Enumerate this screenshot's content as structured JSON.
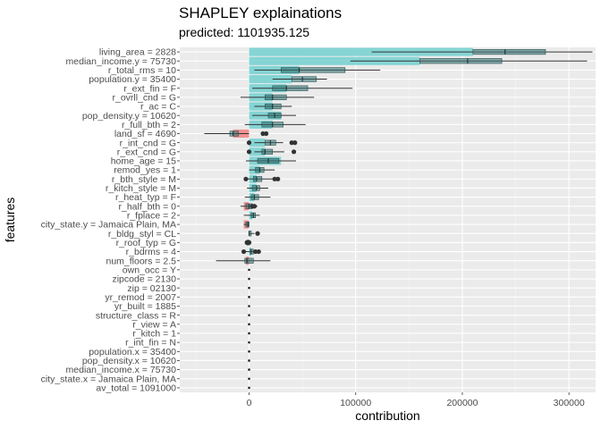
{
  "chart_data": {
    "type": "bar",
    "title": "SHAPLEY explainations",
    "subtitle": "predicted: 1101935.125",
    "xlabel": "contribution",
    "ylabel": "features",
    "xlim": [
      -65000,
      325000
    ],
    "x_ticks": [
      0,
      100000,
      200000,
      300000
    ],
    "x_tick_labels": [
      "0",
      "100000",
      "200000",
      "300000"
    ],
    "grid": true,
    "colors": {
      "positive": "#7fd3d3",
      "negative": "#f08c8c",
      "panel": "#ebebeb",
      "box": "#2e6e6e"
    },
    "features": [
      {
        "label": "living_area = 2828",
        "value": 210000,
        "box": [
          150000,
          210000,
          240000,
          278000,
          310000
        ],
        "whisker": [
          115000,
          322000
        ],
        "outliers": []
      },
      {
        "label": "median_income.y = 75730",
        "value": 160000,
        "box": [
          120000,
          160000,
          205000,
          237000,
          270000
        ],
        "whisker": [
          95000,
          317000
        ],
        "outliers": []
      },
      {
        "label": "r_total_rms = 10",
        "value": 47000,
        "box": [
          15000,
          30000,
          47000,
          90000,
          100000
        ],
        "whisker": [
          5000,
          123000
        ],
        "outliers": []
      },
      {
        "label": "population.y = 35400",
        "value": 40000,
        "box": [
          25000,
          40000,
          50000,
          63000,
          70000
        ],
        "whisker": [
          22000,
          73000
        ],
        "outliers": []
      },
      {
        "label": "r_ext_fin = F",
        "value": 35000,
        "box": [
          10000,
          22000,
          35000,
          55000,
          65000
        ],
        "whisker": [
          3000,
          97000
        ],
        "outliers": []
      },
      {
        "label": "r_ovrll_cnd = G",
        "value": 22000,
        "box": [
          5000,
          15000,
          22000,
          35000,
          45000
        ],
        "whisker": [
          -8000,
          61000
        ],
        "outliers": []
      },
      {
        "label": "r_ac = C",
        "value": 22000,
        "box": [
          10000,
          15000,
          22000,
          30000,
          36000
        ],
        "whisker": [
          5000,
          40000
        ],
        "outliers": []
      },
      {
        "label": "pop_density.y = 10620",
        "value": 30000,
        "box": [
          10000,
          18000,
          24000,
          30000,
          36000
        ],
        "whisker": [
          3000,
          44000
        ],
        "outliers": []
      },
      {
        "label": "r_full_bth = 2",
        "value": 22000,
        "box": [
          5000,
          12000,
          22000,
          32000,
          40000
        ],
        "whisker": [
          -4000,
          53000
        ],
        "outliers": []
      },
      {
        "label": "land_sf = 4690",
        "value": -15000,
        "box": [
          -22000,
          -18000,
          -15000,
          -10000,
          -5000
        ],
        "whisker": [
          -42000,
          0
        ],
        "outliers": [
          13000,
          16000
        ]
      },
      {
        "label": "r_int_cnd = G",
        "value": 15000,
        "box": [
          10000,
          15000,
          20000,
          25000,
          30000
        ],
        "whisker": [
          5000,
          32000
        ],
        "outliers": [
          0,
          40000,
          43000
        ]
      },
      {
        "label": "r_ext_cnd = G",
        "value": 15000,
        "box": [
          8000,
          12000,
          15000,
          22000,
          26000
        ],
        "whisker": [
          5000,
          33000
        ],
        "outliers": [
          0,
          42000
        ]
      },
      {
        "label": "home_age = 15",
        "value": 30000,
        "box": [
          2000,
          8000,
          18000,
          28000,
          34000
        ],
        "whisker": [
          -3000,
          44000
        ],
        "outliers": []
      },
      {
        "label": "remod_yes = 1",
        "value": 10000,
        "box": [
          3000,
          6000,
          10000,
          14000,
          18000
        ],
        "whisker": [
          0,
          24000
        ],
        "outliers": []
      },
      {
        "label": "r_bth_style = M",
        "value": 7000,
        "box": [
          0,
          4000,
          7000,
          12000,
          16000
        ],
        "whisker": [
          -3000,
          22000
        ],
        "outliers": [
          -3000,
          24000,
          27000
        ]
      },
      {
        "label": "r_kitch_style = M",
        "value": 7000,
        "box": [
          0,
          3000,
          7000,
          10000,
          14000
        ],
        "whisker": [
          -2000,
          18000
        ],
        "outliers": []
      },
      {
        "label": "r_heat_typ = F",
        "value": 5000,
        "box": [
          -1000,
          2000,
          5000,
          9000,
          12000
        ],
        "whisker": [
          -4000,
          20000
        ],
        "outliers": []
      },
      {
        "label": "r_half_bth = 0",
        "value": -5000,
        "box": [
          -5000,
          -3000,
          0,
          3000,
          5000
        ],
        "whisker": [
          -8000,
          8000
        ],
        "outliers": [
          3000,
          5000
        ]
      },
      {
        "label": "r_fplace = 2",
        "value": 3000,
        "box": [
          -1000,
          2000,
          4000,
          6000,
          8000
        ],
        "whisker": [
          -5000,
          10000
        ],
        "outliers": []
      },
      {
        "label": "city_state.y = Jamaica Plain, MA",
        "value": -5000,
        "box": [
          -5000,
          -3000,
          -1000,
          0,
          0
        ],
        "whisker": [
          -5000,
          0
        ],
        "outliers": []
      },
      {
        "label": "r_bldg_styl = CL",
        "value": 0,
        "box": [
          0,
          0,
          0,
          2000,
          3000
        ],
        "whisker": [
          0,
          5000
        ],
        "outliers": [
          8000
        ]
      },
      {
        "label": "r_roof_typ = G",
        "value": 0,
        "box": [
          -3000,
          -2000,
          0,
          0,
          0
        ],
        "whisker": [
          -3000,
          0
        ],
        "outliers": [
          -2000,
          0
        ]
      },
      {
        "label": "r_bdrms = 4",
        "value": 2000,
        "box": [
          0,
          1000,
          2000,
          4000,
          6000
        ],
        "whisker": [
          -3000,
          8000
        ],
        "outliers": [
          -5000,
          6000,
          9000
        ]
      },
      {
        "label": "num_floors = 2.5",
        "value": -3000,
        "box": [
          -8000,
          -4000,
          -2000,
          4000,
          10000
        ],
        "whisker": [
          -31000,
          20000
        ],
        "outliers": []
      },
      {
        "label": "own_occ = Y",
        "value": 0,
        "box": [
          0,
          0,
          0,
          0,
          0
        ],
        "whisker": [
          0,
          0
        ],
        "outliers": []
      },
      {
        "label": "zipcode = 2130",
        "value": 0,
        "box": [
          0,
          0,
          0,
          0,
          0
        ],
        "whisker": [
          0,
          0
        ],
        "outliers": []
      },
      {
        "label": "zip = 02130",
        "value": 0,
        "box": [
          0,
          0,
          0,
          0,
          0
        ],
        "whisker": [
          0,
          0
        ],
        "outliers": []
      },
      {
        "label": "yr_remod = 2007",
        "value": 0,
        "box": [
          0,
          0,
          0,
          0,
          0
        ],
        "whisker": [
          0,
          0
        ],
        "outliers": []
      },
      {
        "label": "yr_built = 1885",
        "value": 0,
        "box": [
          0,
          0,
          0,
          0,
          0
        ],
        "whisker": [
          0,
          0
        ],
        "outliers": []
      },
      {
        "label": "structure_class = R",
        "value": 0,
        "box": [
          0,
          0,
          0,
          0,
          0
        ],
        "whisker": [
          0,
          0
        ],
        "outliers": []
      },
      {
        "label": "r_view = A",
        "value": 0,
        "box": [
          0,
          0,
          0,
          0,
          0
        ],
        "whisker": [
          0,
          0
        ],
        "outliers": []
      },
      {
        "label": "r_kitch = 1",
        "value": 0,
        "box": [
          0,
          0,
          0,
          0,
          0
        ],
        "whisker": [
          0,
          0
        ],
        "outliers": []
      },
      {
        "label": "r_int_fin = N",
        "value": 0,
        "box": [
          0,
          0,
          0,
          0,
          0
        ],
        "whisker": [
          0,
          0
        ],
        "outliers": []
      },
      {
        "label": "population.x = 35400",
        "value": 0,
        "box": [
          0,
          0,
          0,
          0,
          0
        ],
        "whisker": [
          0,
          0
        ],
        "outliers": []
      },
      {
        "label": "pop_density.x = 10620",
        "value": 0,
        "box": [
          0,
          0,
          0,
          0,
          0
        ],
        "whisker": [
          0,
          0
        ],
        "outliers": []
      },
      {
        "label": "median_income.x = 75730",
        "value": 0,
        "box": [
          0,
          0,
          0,
          0,
          0
        ],
        "whisker": [
          0,
          0
        ],
        "outliers": []
      },
      {
        "label": "city_state.x = Jamaica Plain, MA",
        "value": 0,
        "box": [
          0,
          0,
          0,
          0,
          0
        ],
        "whisker": [
          0,
          0
        ],
        "outliers": []
      },
      {
        "label": "av_total = 1091000",
        "value": 0,
        "box": [
          0,
          0,
          0,
          0,
          0
        ],
        "whisker": [
          0,
          0
        ],
        "outliers": []
      }
    ]
  }
}
